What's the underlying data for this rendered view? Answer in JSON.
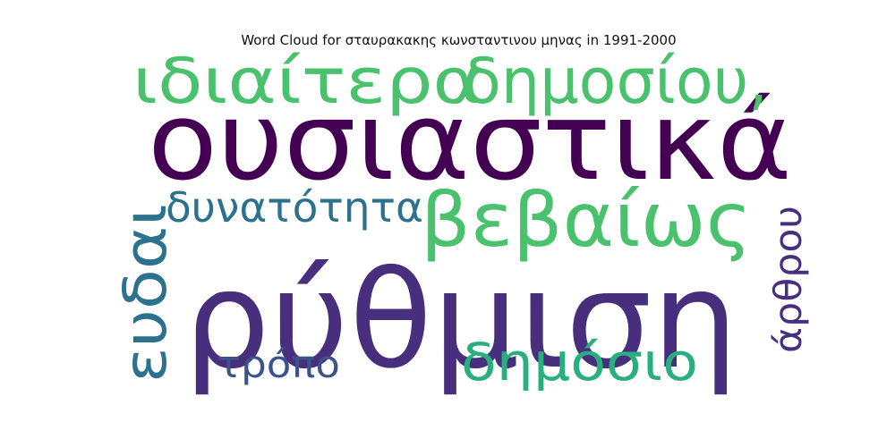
{
  "chart_data": {
    "type": "wordcloud",
    "title": "Word Cloud for σταυρακακης κωνσταντινου μηνας in 1991-2000",
    "words": [
      {
        "text": "ουσιαστικά",
        "color": "#440154"
      },
      {
        "text": "ρύθμιση",
        "color": "#472f7d"
      },
      {
        "text": "ιδιαίτερα",
        "color": "#4ac16d"
      },
      {
        "text": "δημοσίου,",
        "color": "#4ac16d"
      },
      {
        "text": "βεβαίως",
        "color": "#4ac16d"
      },
      {
        "text": "δυνατότητα",
        "color": "#2c728e"
      },
      {
        "text": "ευδαι",
        "color": "#2c728e"
      },
      {
        "text": "δημόσιο",
        "color": "#29af7f"
      },
      {
        "text": "τρόπο",
        "color": "#3b528b"
      },
      {
        "text": "άρθρου",
        "color": "#472f7d"
      }
    ]
  }
}
